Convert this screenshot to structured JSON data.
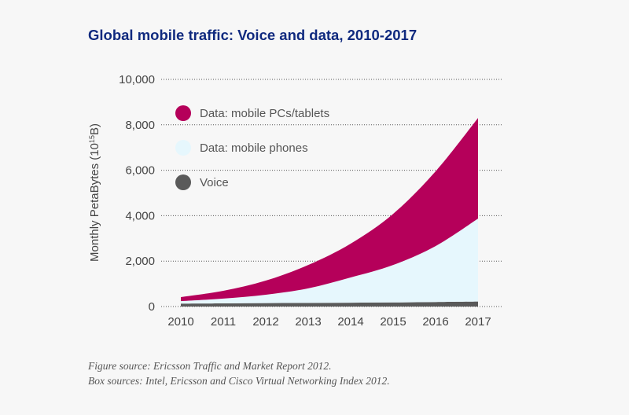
{
  "chart_data": {
    "type": "area",
    "stacked": true,
    "title": "Global mobile traffic: Voice and data, 2010-2017",
    "ylabel": "Monthly PetaBytes (10",
    "ylabel_sup": "15",
    "ylabel_end": "B)",
    "xlabel": "",
    "x": [
      "2010",
      "2011",
      "2012",
      "2013",
      "2014",
      "2015",
      "2016",
      "2017"
    ],
    "ylim": [
      0,
      10000
    ],
    "yticks": [
      "0",
      "2,000",
      "4,000",
      "6,000",
      "8,000",
      "10,000"
    ],
    "ytick_values": [
      0,
      2000,
      4000,
      6000,
      8000,
      10000
    ],
    "grid": "horizontal dotted",
    "legend_placement": "top-left",
    "series": [
      {
        "name": "Voice",
        "color": "#5a5a5a",
        "values": [
          130,
          140,
          150,
          160,
          170,
          180,
          200,
          220
        ]
      },
      {
        "name": "Data: mobile phones",
        "color": "#e6f7fd",
        "values": [
          110,
          210,
          370,
          640,
          1110,
          1650,
          2460,
          3650
        ]
      },
      {
        "name": "Data: mobile PCs/tablets",
        "color": "#b5005a",
        "values": [
          175,
          340,
          620,
          1030,
          1490,
          2250,
          3290,
          4430
        ]
      }
    ],
    "legend_order": [
      2,
      1,
      0
    ]
  },
  "footer": {
    "figure_source": "Figure source: Ericsson Traffic and Market Report 2012.",
    "box_sources": "Box sources: Intel, Ericsson and Cisco Virtual Networking Index 2012."
  }
}
